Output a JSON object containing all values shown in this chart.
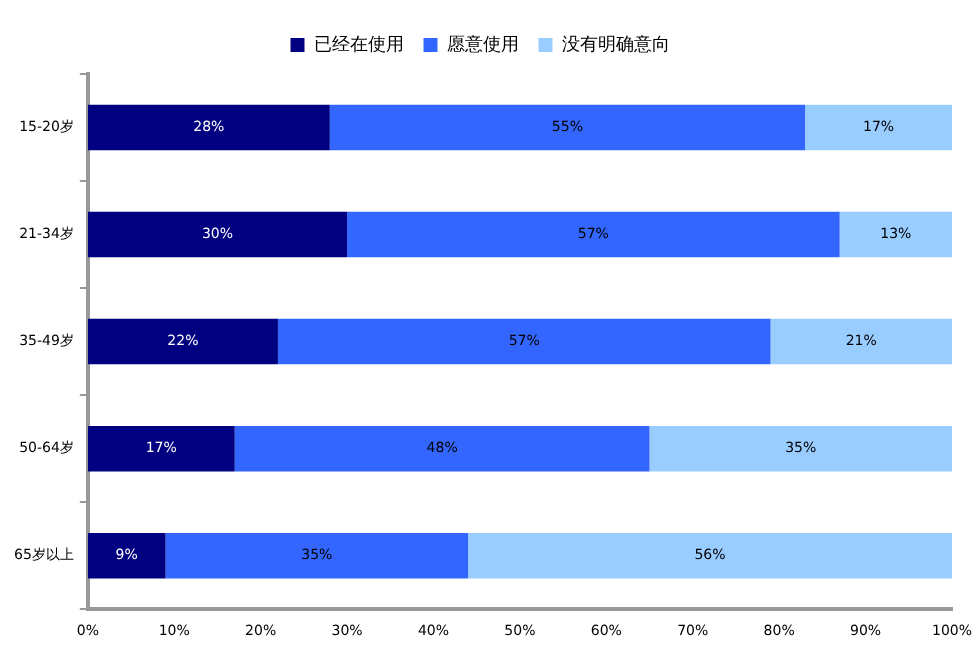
{
  "chart_data": {
    "type": "bar",
    "orientation": "horizontal",
    "stacked": true,
    "categories": [
      "15-20岁",
      "21-34岁",
      "35-49岁",
      "50-64岁",
      "65岁以上"
    ],
    "series": [
      {
        "name": "已经在使用",
        "color": "#000080",
        "values": [
          28,
          30,
          22,
          17,
          9
        ],
        "value_labels": [
          "28%",
          "30%",
          "22%",
          "17%",
          "9%"
        ]
      },
      {
        "name": "愿意使用",
        "color": "#3366ff",
        "values": [
          55,
          57,
          57,
          48,
          35
        ],
        "value_labels": [
          "55%",
          "57%",
          "57%",
          "48%",
          "35%"
        ]
      },
      {
        "name": "没有明确意向",
        "color": "#99ccff",
        "values": [
          17,
          13,
          21,
          35,
          56
        ],
        "value_labels": [
          "17%",
          "13%",
          "21%",
          "35%",
          "56%"
        ]
      }
    ],
    "xlim": [
      0,
      100
    ],
    "xticks": [
      {
        "value": 0,
        "label": "0%"
      },
      {
        "value": 10,
        "label": "10%"
      },
      {
        "value": 20,
        "label": "20%"
      },
      {
        "value": 30,
        "label": "30%"
      },
      {
        "value": 40,
        "label": "40%"
      },
      {
        "value": 50,
        "label": "50%"
      },
      {
        "value": 60,
        "label": "60%"
      },
      {
        "value": 70,
        "label": "70%"
      },
      {
        "value": 80,
        "label": "80%"
      },
      {
        "value": 90,
        "label": "90%"
      },
      {
        "value": 100,
        "label": "100%"
      }
    ],
    "legend": "top",
    "grid": false
  }
}
